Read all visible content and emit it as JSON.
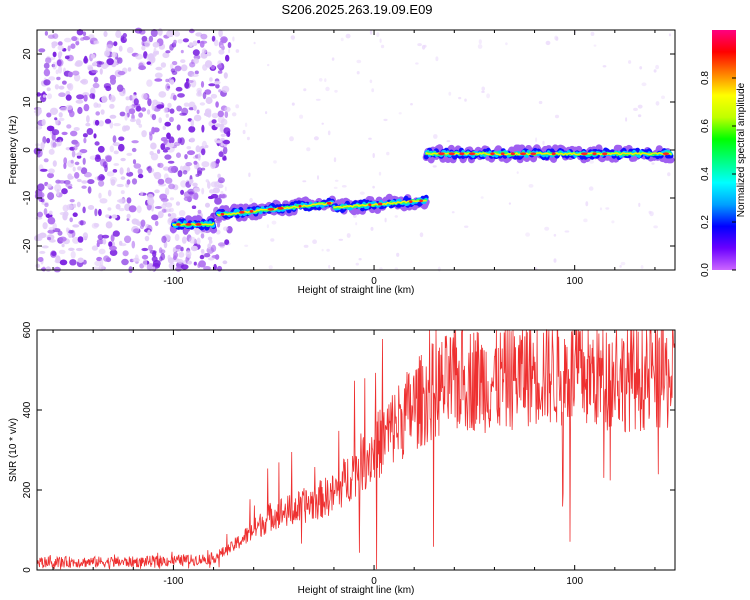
{
  "title": "S206.2025.263.19.09.E09",
  "colors": {
    "snr_line": "#ee3030",
    "noise": "#8a2be2",
    "colormap": [
      "#cc66ff",
      "#6a00ff",
      "#0000ff",
      "#00a0ff",
      "#00ffff",
      "#00ff80",
      "#00ff00",
      "#c0ff00",
      "#ffff00",
      "#ff8000",
      "#ff0000",
      "#ff0080"
    ]
  },
  "chart_data": [
    {
      "type": "heatmap",
      "xlabel": "Height of straight line (km)",
      "ylabel": "Frequency (Hz)",
      "xlim": [
        -168,
        150
      ],
      "ylim": [
        -25,
        25
      ],
      "xticks": [
        -100,
        0,
        100
      ],
      "yticks": [
        -20,
        -10,
        0,
        10,
        20
      ],
      "colorbar": {
        "label": "Normalized spectral amplitude",
        "range": [
          0,
          1
        ],
        "ticks": [
          0.0,
          0.2,
          0.4,
          0.6,
          0.8
        ]
      },
      "noise_region_x": [
        -168,
        -78
      ],
      "ridges": [
        {
          "x_start": -100,
          "x_end": -80,
          "freq": -15.5
        },
        {
          "x_start": -78,
          "x_end": -20,
          "freq_start": -13.5,
          "freq_end": -11
        },
        {
          "x_start": -20,
          "x_end": 26,
          "freq_start": -12,
          "freq_end": -10.5
        },
        {
          "x_start": 26,
          "x_end": 148,
          "freq": -0.8
        }
      ]
    },
    {
      "type": "line",
      "xlabel": "Height of straight line (km)",
      "ylabel": "SNR (10 * v/v)",
      "xlim": [
        -168,
        150
      ],
      "ylim": [
        0,
        600
      ],
      "xticks": [
        -100,
        0,
        100
      ],
      "yticks": [
        0,
        200,
        400,
        600
      ],
      "series": [
        {
          "x": [
            -168,
            -120,
            -90,
            -80,
            -70,
            -60,
            -50,
            -40,
            -30,
            -20,
            -10,
            0,
            10,
            20,
            30,
            40,
            50,
            60,
            80,
            100,
            120,
            150
          ],
          "values": [
            20,
            20,
            25,
            30,
            60,
            100,
            140,
            150,
            170,
            190,
            250,
            300,
            360,
            410,
            450,
            470,
            480,
            470,
            500,
            490,
            480,
            480
          ]
        }
      ]
    }
  ]
}
